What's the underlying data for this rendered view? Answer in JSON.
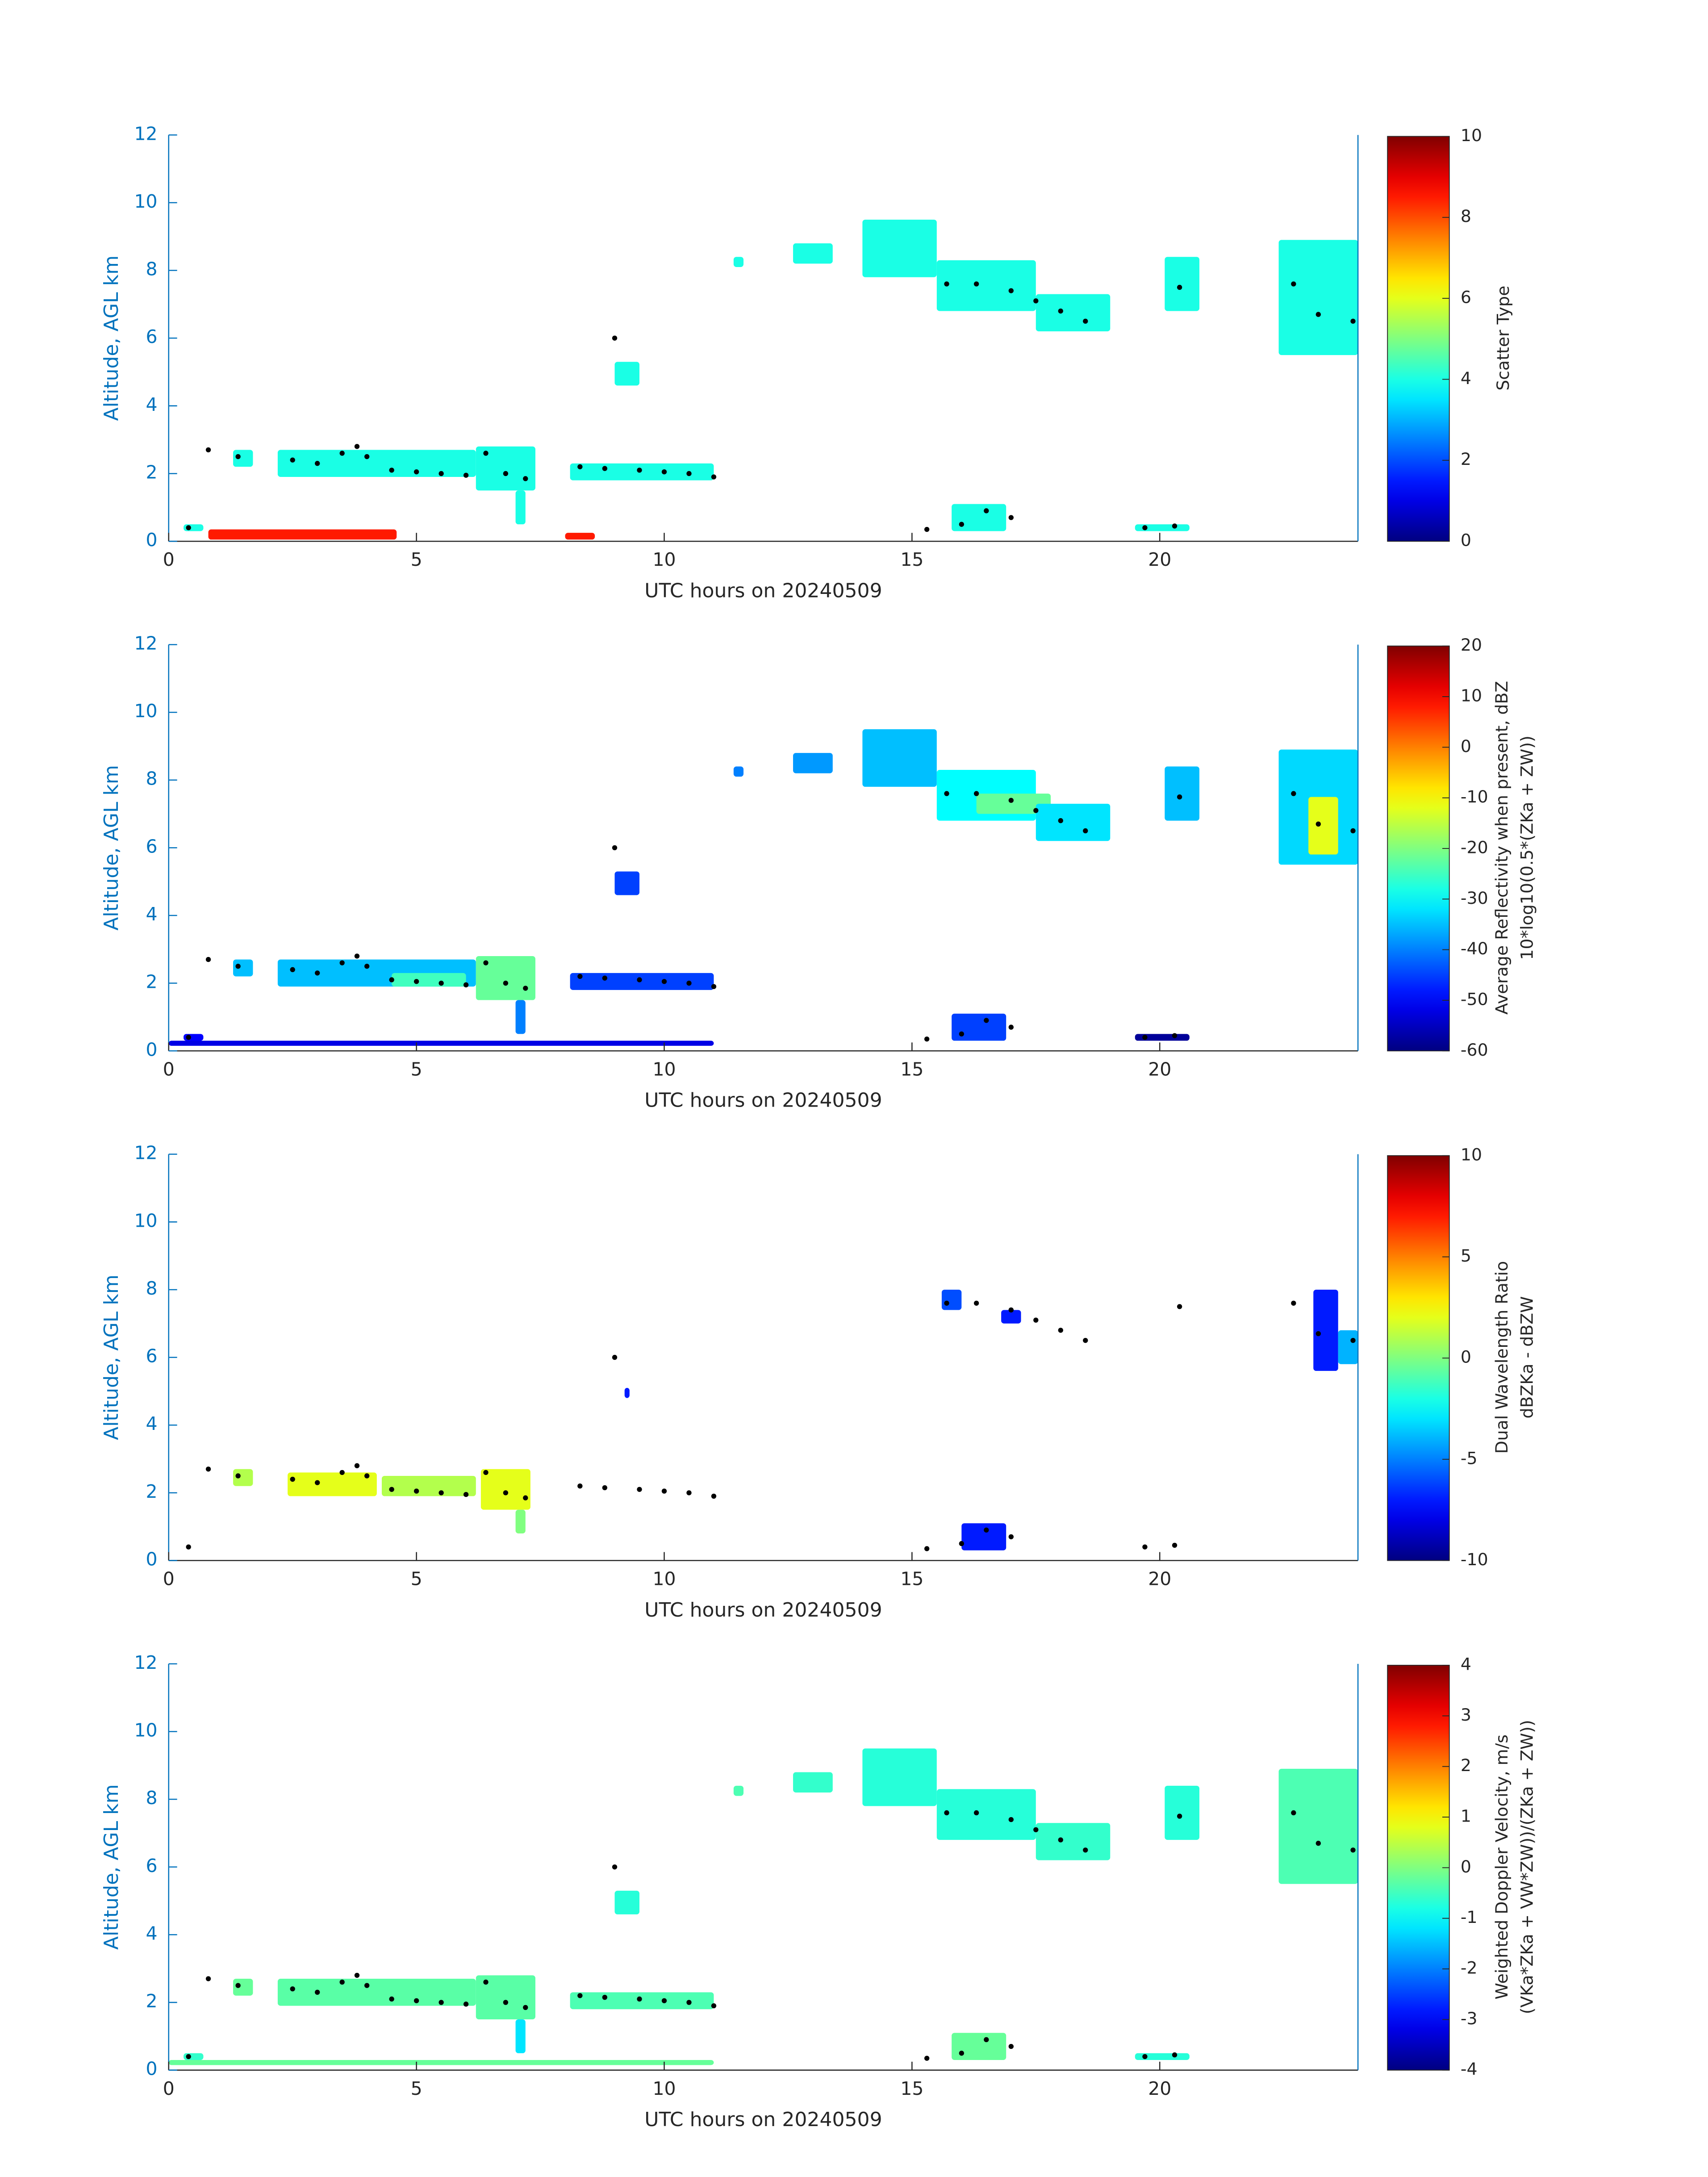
{
  "chart_data": [
    {
      "type": "time-height",
      "xlabel": "UTC hours on 20240509",
      "ylabel": "Altitude, AGL km",
      "clabel": [
        "Scatter Type"
      ],
      "colormap": "jet",
      "xlim": [
        0,
        24
      ],
      "xticks": [
        0,
        5,
        10,
        15,
        20
      ],
      "ylim": [
        0,
        12
      ],
      "yticks": [
        0,
        2,
        4,
        6,
        8,
        10,
        12
      ],
      "clim": [
        0,
        10
      ],
      "cticks": [
        0,
        2,
        4,
        6,
        8,
        10
      ],
      "regions": [
        {
          "x": [
            0.3,
            0.7
          ],
          "y": [
            0.3,
            0.5
          ],
          "value": 4
        },
        {
          "x": [
            1.3,
            1.7
          ],
          "y": [
            2.2,
            2.7
          ],
          "value": 4
        },
        {
          "x": [
            2.2,
            6.2
          ],
          "y": [
            1.9,
            2.7
          ],
          "value": 4
        },
        {
          "x": [
            6.2,
            7.4
          ],
          "y": [
            1.5,
            2.8
          ],
          "value": 4
        },
        {
          "x": [
            7.0,
            7.2
          ],
          "y": [
            0.5,
            1.5
          ],
          "value": 4
        },
        {
          "x": [
            8.1,
            11.0
          ],
          "y": [
            1.8,
            2.3
          ],
          "value": 4
        },
        {
          "x": [
            9.0,
            9.5
          ],
          "y": [
            4.6,
            5.3
          ],
          "value": 4
        },
        {
          "x": [
            11.4,
            11.6
          ],
          "y": [
            8.1,
            8.4
          ],
          "value": 4
        },
        {
          "x": [
            12.6,
            13.4
          ],
          "y": [
            8.2,
            8.8
          ],
          "value": 4
        },
        {
          "x": [
            14.0,
            15.5
          ],
          "y": [
            7.8,
            9.5
          ],
          "value": 4
        },
        {
          "x": [
            15.5,
            17.5
          ],
          "y": [
            6.8,
            8.3
          ],
          "value": 4
        },
        {
          "x": [
            17.5,
            19.0
          ],
          "y": [
            6.2,
            7.3
          ],
          "value": 4
        },
        {
          "x": [
            20.1,
            20.8
          ],
          "y": [
            6.8,
            8.4
          ],
          "value": 4
        },
        {
          "x": [
            22.4,
            24.0
          ],
          "y": [
            5.5,
            8.9
          ],
          "value": 4
        },
        {
          "x": [
            15.8,
            16.9
          ],
          "y": [
            0.3,
            1.1
          ],
          "value": 4
        },
        {
          "x": [
            19.5,
            20.6
          ],
          "y": [
            0.3,
            0.5
          ],
          "value": 4
        },
        {
          "x": [
            0.8,
            4.6
          ],
          "y": [
            0.05,
            0.35
          ],
          "value": 8.5
        },
        {
          "x": [
            8.0,
            8.6
          ],
          "y": [
            0.05,
            0.25
          ],
          "value": 8.5
        }
      ],
      "points": {
        "x": [
          0.4,
          0.8,
          1.4,
          2.5,
          3.0,
          3.5,
          3.8,
          4.0,
          4.5,
          5.0,
          5.5,
          6.0,
          6.4,
          6.8,
          7.2,
          8.3,
          8.8,
          9.0,
          9.5,
          10.0,
          10.5,
          11.0,
          15.3,
          16.0,
          16.5,
          17.0,
          15.7,
          16.3,
          17.0,
          17.5,
          18.0,
          18.5,
          19.7,
          20.3,
          20.4,
          22.7,
          23.2,
          23.9
        ],
        "y": [
          0.4,
          2.7,
          2.5,
          2.4,
          2.3,
          2.6,
          2.8,
          2.5,
          2.1,
          2.05,
          2.0,
          1.95,
          2.6,
          2.0,
          1.85,
          2.2,
          2.15,
          6.0,
          2.1,
          2.05,
          2.0,
          1.9,
          0.35,
          0.5,
          0.9,
          0.7,
          7.6,
          7.6,
          7.4,
          7.1,
          6.8,
          6.5,
          0.4,
          0.45,
          7.5,
          7.6,
          6.7,
          6.5
        ]
      }
    },
    {
      "type": "time-height",
      "xlabel": "UTC hours on 20240509",
      "ylabel": "Altitude, AGL km",
      "clabel": [
        "Average Reflectivity when present, dBZ",
        "10*log10(0.5*(ZKa + ZW))"
      ],
      "colormap": "jet",
      "xlim": [
        0,
        24
      ],
      "xticks": [
        0,
        5,
        10,
        15,
        20
      ],
      "ylim": [
        0,
        12
      ],
      "yticks": [
        0,
        2,
        4,
        6,
        8,
        10,
        12
      ],
      "clim": [
        -60,
        20
      ],
      "cticks": [
        -60,
        -50,
        -40,
        -30,
        -20,
        -10,
        0,
        10,
        20
      ],
      "regions": [
        {
          "x": [
            0.3,
            0.7
          ],
          "y": [
            0.3,
            0.5
          ],
          "value": -50
        },
        {
          "x": [
            1.3,
            1.7
          ],
          "y": [
            2.2,
            2.7
          ],
          "value": -35
        },
        {
          "x": [
            2.2,
            6.2
          ],
          "y": [
            1.9,
            2.7
          ],
          "value": -35
        },
        {
          "x": [
            4.5,
            6.0
          ],
          "y": [
            1.9,
            2.3
          ],
          "value": -25
        },
        {
          "x": [
            6.2,
            7.4
          ],
          "y": [
            1.5,
            2.8
          ],
          "value": -22
        },
        {
          "x": [
            7.0,
            7.2
          ],
          "y": [
            0.5,
            1.5
          ],
          "value": -40
        },
        {
          "x": [
            8.1,
            11.0
          ],
          "y": [
            1.8,
            2.3
          ],
          "value": -45
        },
        {
          "x": [
            9.0,
            9.5
          ],
          "y": [
            4.6,
            5.3
          ],
          "value": -45
        },
        {
          "x": [
            11.4,
            11.6
          ],
          "y": [
            8.1,
            8.4
          ],
          "value": -40
        },
        {
          "x": [
            12.6,
            13.4
          ],
          "y": [
            8.2,
            8.8
          ],
          "value": -38
        },
        {
          "x": [
            14.0,
            15.5
          ],
          "y": [
            7.8,
            9.5
          ],
          "value": -35
        },
        {
          "x": [
            15.5,
            17.5
          ],
          "y": [
            6.8,
            8.3
          ],
          "value": -30
        },
        {
          "x": [
            16.3,
            17.8
          ],
          "y": [
            7.0,
            7.6
          ],
          "value": -22
        },
        {
          "x": [
            17.5,
            19.0
          ],
          "y": [
            6.2,
            7.3
          ],
          "value": -32
        },
        {
          "x": [
            20.1,
            20.8
          ],
          "y": [
            6.8,
            8.4
          ],
          "value": -35
        },
        {
          "x": [
            22.4,
            24.0
          ],
          "y": [
            5.5,
            8.9
          ],
          "value": -33
        },
        {
          "x": [
            23.0,
            23.6
          ],
          "y": [
            5.8,
            7.5
          ],
          "value": -12
        },
        {
          "x": [
            15.8,
            16.9
          ],
          "y": [
            0.3,
            1.1
          ],
          "value": -45
        },
        {
          "x": [
            19.5,
            20.6
          ],
          "y": [
            0.3,
            0.5
          ],
          "value": -58
        },
        {
          "x": [
            0.0,
            11.0
          ],
          "y": [
            0.15,
            0.3
          ],
          "value": -52
        }
      ],
      "points": {
        "x": [
          0.4,
          0.8,
          1.4,
          2.5,
          3.0,
          3.5,
          3.8,
          4.0,
          4.5,
          5.0,
          5.5,
          6.0,
          6.4,
          6.8,
          7.2,
          8.3,
          8.8,
          9.0,
          9.5,
          10.0,
          10.5,
          11.0,
          15.3,
          16.0,
          16.5,
          17.0,
          15.7,
          16.3,
          17.0,
          17.5,
          18.0,
          18.5,
          19.7,
          20.3,
          20.4,
          22.7,
          23.2,
          23.9
        ],
        "y": [
          0.4,
          2.7,
          2.5,
          2.4,
          2.3,
          2.6,
          2.8,
          2.5,
          2.1,
          2.05,
          2.0,
          1.95,
          2.6,
          2.0,
          1.85,
          2.2,
          2.15,
          6.0,
          2.1,
          2.05,
          2.0,
          1.9,
          0.35,
          0.5,
          0.9,
          0.7,
          7.6,
          7.6,
          7.4,
          7.1,
          6.8,
          6.5,
          0.4,
          0.45,
          7.5,
          7.6,
          6.7,
          6.5
        ]
      }
    },
    {
      "type": "time-height",
      "xlabel": "UTC hours on 20240509",
      "ylabel": "Altitude, AGL km",
      "clabel": [
        "Dual Wavelength Ratio",
        "dBZKa - dBZW"
      ],
      "colormap": "jet",
      "xlim": [
        0,
        24
      ],
      "xticks": [
        0,
        5,
        10,
        15,
        20
      ],
      "ylim": [
        0,
        12
      ],
      "yticks": [
        0,
        2,
        4,
        6,
        8,
        10,
        12
      ],
      "clim": [
        -10,
        10
      ],
      "cticks": [
        -10,
        -5,
        0,
        5,
        10
      ],
      "regions": [
        {
          "x": [
            1.3,
            1.7
          ],
          "y": [
            2.2,
            2.7
          ],
          "value": 1
        },
        {
          "x": [
            2.4,
            4.2
          ],
          "y": [
            1.9,
            2.6
          ],
          "value": 2
        },
        {
          "x": [
            4.3,
            6.2
          ],
          "y": [
            1.9,
            2.5
          ],
          "value": 1
        },
        {
          "x": [
            6.3,
            7.3
          ],
          "y": [
            1.5,
            2.7
          ],
          "value": 2
        },
        {
          "x": [
            7.0,
            7.2
          ],
          "y": [
            0.8,
            1.5
          ],
          "value": 0
        },
        {
          "x": [
            9.2,
            9.3
          ],
          "y": [
            4.8,
            5.1
          ],
          "value": -7
        },
        {
          "x": [
            15.6,
            16.0
          ],
          "y": [
            7.4,
            8.0
          ],
          "value": -6
        },
        {
          "x": [
            16.8,
            17.2
          ],
          "y": [
            7.0,
            7.4
          ],
          "value": -7
        },
        {
          "x": [
            23.1,
            23.6
          ],
          "y": [
            5.6,
            8.0
          ],
          "value": -7
        },
        {
          "x": [
            23.6,
            24.0
          ],
          "y": [
            5.8,
            6.8
          ],
          "value": -4
        },
        {
          "x": [
            16.0,
            16.9
          ],
          "y": [
            0.3,
            1.1
          ],
          "value": -7
        }
      ],
      "points": {
        "x": [
          0.4,
          0.8,
          1.4,
          2.5,
          3.0,
          3.5,
          3.8,
          4.0,
          4.5,
          5.0,
          5.5,
          6.0,
          6.4,
          6.8,
          7.2,
          8.3,
          8.8,
          9.0,
          9.5,
          10.0,
          10.5,
          11.0,
          15.3,
          16.0,
          16.5,
          17.0,
          15.7,
          16.3,
          17.0,
          17.5,
          18.0,
          18.5,
          19.7,
          20.3,
          20.4,
          22.7,
          23.2,
          23.9
        ],
        "y": [
          0.4,
          2.7,
          2.5,
          2.4,
          2.3,
          2.6,
          2.8,
          2.5,
          2.1,
          2.05,
          2.0,
          1.95,
          2.6,
          2.0,
          1.85,
          2.2,
          2.15,
          6.0,
          2.1,
          2.05,
          2.0,
          1.9,
          0.35,
          0.5,
          0.9,
          0.7,
          7.6,
          7.6,
          7.4,
          7.1,
          6.8,
          6.5,
          0.4,
          0.45,
          7.5,
          7.6,
          6.7,
          6.5
        ]
      }
    },
    {
      "type": "time-height",
      "xlabel": "UTC hours on 20240509",
      "ylabel": "Altitude, AGL km",
      "clabel": [
        "Weighted Doppler Velocity, m/s",
        "(VKa*ZKa + VW*ZW))/(ZKa + ZW))"
      ],
      "colormap": "jet",
      "xlim": [
        0,
        24
      ],
      "xticks": [
        0,
        5,
        10,
        15,
        20
      ],
      "ylim": [
        0,
        12
      ],
      "yticks": [
        0,
        2,
        4,
        6,
        8,
        10,
        12
      ],
      "clim": [
        -4,
        4
      ],
      "cticks": [
        -4,
        -3,
        -2,
        -1,
        0,
        1,
        2,
        3,
        4
      ],
      "regions": [
        {
          "x": [
            0.3,
            0.7
          ],
          "y": [
            0.3,
            0.5
          ],
          "value": -0.6
        },
        {
          "x": [
            1.3,
            1.7
          ],
          "y": [
            2.2,
            2.7
          ],
          "value": -0.2
        },
        {
          "x": [
            2.2,
            6.2
          ],
          "y": [
            1.9,
            2.7
          ],
          "value": -0.3
        },
        {
          "x": [
            6.2,
            7.4
          ],
          "y": [
            1.5,
            2.8
          ],
          "value": -0.3
        },
        {
          "x": [
            7.0,
            7.2
          ],
          "y": [
            0.5,
            1.5
          ],
          "value": -1.2
        },
        {
          "x": [
            8.1,
            11.0
          ],
          "y": [
            1.8,
            2.3
          ],
          "value": -0.4
        },
        {
          "x": [
            9.0,
            9.5
          ],
          "y": [
            4.6,
            5.3
          ],
          "value": -0.7
        },
        {
          "x": [
            11.4,
            11.6
          ],
          "y": [
            8.1,
            8.4
          ],
          "value": -0.4
        },
        {
          "x": [
            12.6,
            13.4
          ],
          "y": [
            8.2,
            8.8
          ],
          "value": -0.6
        },
        {
          "x": [
            14.0,
            15.5
          ],
          "y": [
            7.8,
            9.5
          ],
          "value": -0.7
        },
        {
          "x": [
            15.5,
            17.5
          ],
          "y": [
            6.8,
            8.3
          ],
          "value": -0.7
        },
        {
          "x": [
            17.5,
            19.0
          ],
          "y": [
            6.2,
            7.3
          ],
          "value": -0.6
        },
        {
          "x": [
            20.1,
            20.8
          ],
          "y": [
            6.8,
            8.4
          ],
          "value": -0.7
        },
        {
          "x": [
            22.4,
            24.0
          ],
          "y": [
            5.5,
            8.9
          ],
          "value": -0.4
        },
        {
          "x": [
            15.8,
            16.9
          ],
          "y": [
            0.3,
            1.1
          ],
          "value": -0.2
        },
        {
          "x": [
            19.5,
            20.6
          ],
          "y": [
            0.3,
            0.5
          ],
          "value": -0.7
        },
        {
          "x": [
            0.0,
            11.0
          ],
          "y": [
            0.15,
            0.3
          ],
          "value": -0.2
        }
      ],
      "points": {
        "x": [
          0.4,
          0.8,
          1.4,
          2.5,
          3.0,
          3.5,
          3.8,
          4.0,
          4.5,
          5.0,
          5.5,
          6.0,
          6.4,
          6.8,
          7.2,
          8.3,
          8.8,
          9.0,
          9.5,
          10.0,
          10.5,
          11.0,
          15.3,
          16.0,
          16.5,
          17.0,
          15.7,
          16.3,
          17.0,
          17.5,
          18.0,
          18.5,
          19.7,
          20.3,
          20.4,
          22.7,
          23.2,
          23.9
        ],
        "y": [
          0.4,
          2.7,
          2.5,
          2.4,
          2.3,
          2.6,
          2.8,
          2.5,
          2.1,
          2.05,
          2.0,
          1.95,
          2.6,
          2.0,
          1.85,
          2.2,
          2.15,
          6.0,
          2.1,
          2.05,
          2.0,
          1.9,
          0.35,
          0.5,
          0.9,
          0.7,
          7.6,
          7.6,
          7.4,
          7.1,
          6.8,
          6.5,
          0.4,
          0.45,
          7.5,
          7.6,
          6.7,
          6.5
        ]
      }
    }
  ]
}
